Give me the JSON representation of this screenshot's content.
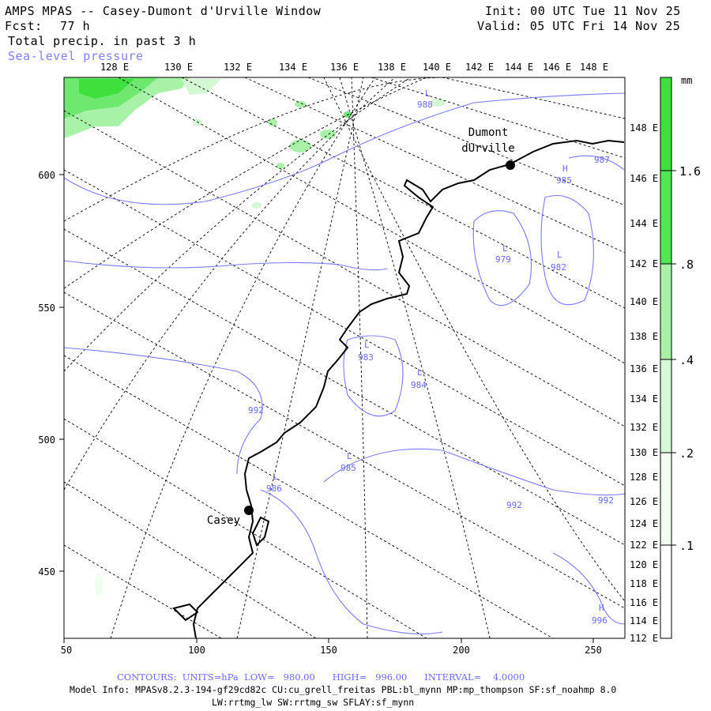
{
  "header": {
    "title": "AMPS MPAS -- Casey-Dumont d'Urville Window",
    "fcst_label": "Fcst:",
    "fcst_value": "77 h",
    "field1": "Total precip. in past 3 h",
    "field2": "Sea-level pressure",
    "init": "Init: 00 UTC Tue 11 Nov 25",
    "valid": "Valid: 05 UTC Fri 14 Nov 25"
  },
  "axes": {
    "x_ticks": [
      "50",
      "100",
      "150",
      "200",
      "250"
    ],
    "y_ticks": [
      "450",
      "500",
      "550",
      "600"
    ],
    "top_lon": [
      "128 E",
      "130 E",
      "132 E",
      "134 E",
      "136 E",
      "138 E",
      "140 E",
      "142 E",
      "144 E",
      "146 E",
      "148 E"
    ],
    "right_lon": [
      "148 E",
      "146 E",
      "144 E",
      "142 E",
      "140 E",
      "138 E",
      "136 E",
      "134 E",
      "132 E",
      "130 E",
      "128 E",
      "126 E",
      "124 E",
      "122 E",
      "120 E",
      "118 E",
      "116 E",
      "114 E",
      "112 E"
    ]
  },
  "stations": {
    "dumont1": "Dumont",
    "dumont2": "dUrville",
    "casey": "Casey"
  },
  "pressure_labels": [
    {
      "letter": "L",
      "value": "988"
    },
    {
      "letter": "H",
      "value": "985"
    },
    {
      "letter": "L",
      "value": "979"
    },
    {
      "letter": "L",
      "value": "982"
    },
    {
      "letter": "L",
      "value": "983"
    },
    {
      "letter": "L",
      "value": "984"
    },
    {
      "letter": "L",
      "value": "985"
    },
    {
      "letter": "L",
      "value": "986"
    },
    {
      "letter": "H",
      "value": "996"
    },
    {
      "letter": "",
      "value": "992"
    },
    {
      "letter": "",
      "value": "992"
    },
    {
      "letter": "",
      "value": "992"
    },
    {
      "letter": "",
      "value": "987"
    }
  ],
  "colorbar": {
    "unit": "mm",
    "labels": [
      "1.6",
      ".8",
      ".4",
      ".2",
      ".1"
    ],
    "colors": [
      "#3ee03e",
      "#6fe86f",
      "#a8f2a8",
      "#d4f8d4",
      "#effdef"
    ]
  },
  "footer": {
    "contours": "CONTOURS:  UNITS=hPa  LOW=   980.00      HIGH=   996.00      INTERVAL=    4.0000",
    "model_info": "Model Info: MPASv8.2.3-194-gf29cd82c CU:cu_grell_freitas PBL:bl_mynn MP:mp_thompson SF:sf_noahmp 8.0",
    "model_info2": "LW:rrtmg_lw SW:rrtmg_sw SFLAY:sf_mynn"
  }
}
